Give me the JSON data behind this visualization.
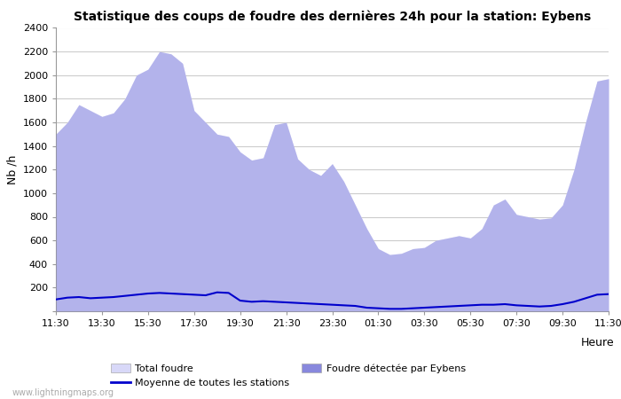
{
  "title": "Statistique des coups de foudre des dernières 24h pour la station: Eybens",
  "xlabel": "Heure",
  "ylabel": "Nb /h",
  "watermark": "www.lightningmaps.org",
  "ylim": [
    0,
    2400
  ],
  "yticks": [
    0,
    200,
    400,
    600,
    800,
    1000,
    1200,
    1400,
    1600,
    1800,
    2000,
    2200,
    2400
  ],
  "xtick_labels": [
    "11:30",
    "13:30",
    "15:30",
    "17:30",
    "19:30",
    "21:30",
    "23:30",
    "01:30",
    "03:30",
    "05:30",
    "07:30",
    "09:30",
    "11:30"
  ],
  "total_foudre_color": "#d8d8f8",
  "eybens_color": "#8888dd",
  "moyenne_color": "#0000cc",
  "background_color": "#ffffff",
  "grid_color": "#cccccc",
  "x": [
    0,
    1,
    2,
    3,
    4,
    5,
    6,
    7,
    8,
    9,
    10,
    11,
    12,
    13,
    14,
    15,
    16,
    17,
    18,
    19,
    20,
    21,
    22,
    23,
    24,
    25,
    26,
    27,
    28,
    29,
    30,
    31,
    32,
    33,
    34,
    35,
    36,
    37,
    38,
    39,
    40,
    41,
    42,
    43,
    44,
    45,
    46,
    47,
    48
  ],
  "total_foudre": [
    1500,
    1600,
    1750,
    1700,
    1650,
    1680,
    1800,
    2000,
    2050,
    2200,
    2180,
    2100,
    1700,
    1600,
    1500,
    1480,
    1350,
    1280,
    1300,
    1580,
    1600,
    1290,
    1200,
    1150,
    1250,
    1100,
    900,
    700,
    530,
    480,
    490,
    530,
    540,
    600,
    620,
    640,
    620,
    700,
    900,
    950,
    820,
    800,
    780,
    790,
    900,
    1200,
    1600,
    1950,
    1970
  ],
  "eybens": [
    1500,
    1600,
    1750,
    1700,
    1650,
    1680,
    1800,
    2000,
    2050,
    2200,
    2180,
    2100,
    1700,
    1600,
    1500,
    1480,
    1350,
    1280,
    1300,
    1580,
    1600,
    1290,
    1200,
    1150,
    1250,
    1100,
    900,
    700,
    530,
    480,
    490,
    530,
    540,
    600,
    620,
    640,
    620,
    700,
    900,
    950,
    820,
    800,
    780,
    790,
    900,
    1200,
    1600,
    1950,
    1970
  ],
  "moyenne": [
    100,
    115,
    120,
    110,
    115,
    120,
    130,
    140,
    150,
    155,
    150,
    145,
    140,
    135,
    160,
    155,
    90,
    80,
    85,
    80,
    75,
    70,
    65,
    60,
    55,
    50,
    45,
    30,
    25,
    20,
    20,
    25,
    30,
    35,
    40,
    45,
    50,
    55,
    55,
    60,
    50,
    45,
    40,
    45,
    60,
    80,
    110,
    140,
    145
  ]
}
